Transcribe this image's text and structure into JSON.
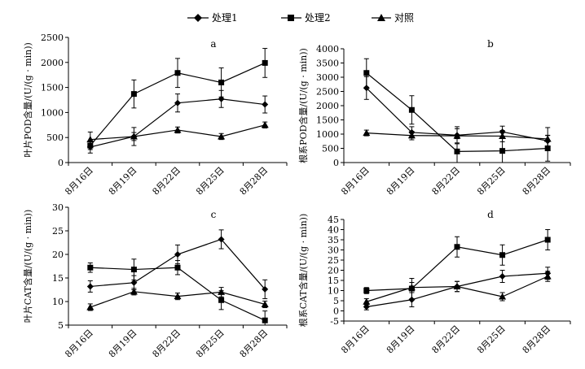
{
  "legend": [
    "处理1",
    "处理2",
    "对照"
  ],
  "chart_data": [
    {
      "type": "line",
      "panel": "a",
      "ylabel": "叶片POD含量/(U/(g · min))",
      "ylim": [
        0,
        2500
      ],
      "yticks": [
        0,
        500,
        1000,
        1500,
        2000,
        2500
      ],
      "categories": [
        "8月16日",
        "8月19日",
        "8月22日",
        "8月25日",
        "8月28日"
      ],
      "series": [
        {
          "name": "处理1",
          "marker": "diamond",
          "values": [
            310,
            520,
            1190,
            1270,
            1160
          ],
          "errors": [
            120,
            180,
            180,
            170,
            170
          ]
        },
        {
          "name": "处理2",
          "marker": "square",
          "values": [
            340,
            1370,
            1790,
            1600,
            1990
          ],
          "errors": [
            80,
            280,
            290,
            290,
            290
          ]
        },
        {
          "name": "对照",
          "marker": "triangle",
          "values": [
            460,
            520,
            650,
            520,
            750
          ],
          "errors": [
            150,
            80,
            60,
            60,
            60
          ]
        }
      ]
    },
    {
      "type": "line",
      "panel": "b",
      "ylabel": "根系POD含量/(U/(g · min))",
      "ylim": [
        0,
        4000
      ],
      "yticks": [
        0,
        500,
        1000,
        1500,
        2000,
        2500,
        3000,
        3500,
        4000
      ],
      "categories": [
        "8月16日",
        "8月19日",
        "8月22日",
        "8月25日",
        "8月28日"
      ],
      "series": [
        {
          "name": "处理1",
          "marker": "diamond",
          "values": [
            2620,
            1060,
            960,
            1080,
            760
          ],
          "errors": [
            400,
            200,
            300,
            200,
            200
          ]
        },
        {
          "name": "处理2",
          "marker": "square",
          "values": [
            3150,
            1850,
            390,
            410,
            500
          ],
          "errors": [
            500,
            500,
            450,
            450,
            450
          ]
        },
        {
          "name": "对照",
          "marker": "triangle",
          "values": [
            1040,
            950,
            940,
            930,
            830
          ],
          "errors": [
            100,
            150,
            250,
            200,
            400
          ]
        }
      ]
    },
    {
      "type": "line",
      "panel": "c",
      "ylabel": "叶片CAT含量/(U/(g · min))",
      "ylim": [
        5,
        30
      ],
      "yticks": [
        5,
        10,
        15,
        20,
        25,
        30
      ],
      "categories": [
        "8月16日",
        "8月19日",
        "8月22日",
        "8月25日",
        "8月28日"
      ],
      "series": [
        {
          "name": "处理1",
          "marker": "diamond",
          "values": [
            13.2,
            14.0,
            20.0,
            23.2,
            12.6
          ],
          "errors": [
            1.2,
            1.5,
            2.0,
            2.0,
            2.0
          ]
        },
        {
          "name": "处理2",
          "marker": "square",
          "values": [
            17.2,
            16.8,
            17.2,
            10.3,
            6.0
          ],
          "errors": [
            1.0,
            2.2,
            1.5,
            2.0,
            2.0
          ]
        },
        {
          "name": "对照",
          "marker": "triangle",
          "values": [
            8.8,
            12.1,
            11.1,
            12.0,
            9.4
          ],
          "errors": [
            0.7,
            0.7,
            0.7,
            1.0,
            0.7
          ]
        }
      ]
    },
    {
      "type": "line",
      "panel": "d",
      "ylabel": "根系CAT含量/(U/(g · min))",
      "ylim": [
        -5,
        45
      ],
      "yticks": [
        -5,
        0,
        5,
        10,
        15,
        20,
        25,
        30,
        35,
        40,
        45
      ],
      "categories": [
        "8月16日",
        "8月19日",
        "8月22日",
        "8月25日",
        "8月28日"
      ],
      "series": [
        {
          "name": "处理1",
          "marker": "diamond",
          "values": [
            2.0,
            5.5,
            12.0,
            17.0,
            18.5
          ],
          "errors": [
            1.5,
            3.5,
            2.5,
            3.0,
            3.0
          ]
        },
        {
          "name": "处理2",
          "marker": "square",
          "values": [
            10.0,
            11.0,
            31.5,
            27.5,
            35.0
          ],
          "errors": [
            1.5,
            5.0,
            5.0,
            5.0,
            5.0
          ]
        },
        {
          "name": "对照",
          "marker": "triangle",
          "values": [
            4.5,
            11.5,
            12.0,
            7.0,
            17.0
          ],
          "errors": [
            1.5,
            2.5,
            2.5,
            2.0,
            2.5
          ]
        }
      ]
    }
  ]
}
